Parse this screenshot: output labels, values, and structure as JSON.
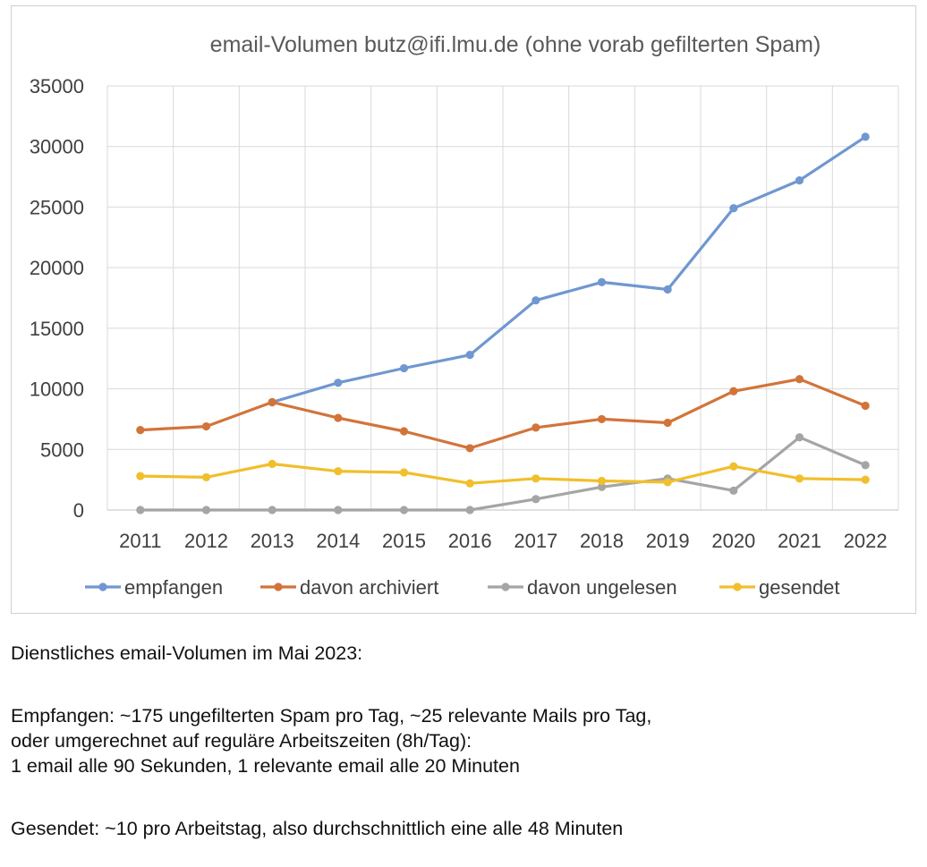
{
  "chart_data": {
    "type": "line",
    "title": "email-Volumen butz@ifi.lmu.de  (ohne  vorab gefilterten Spam)",
    "xlabel": "",
    "ylabel": "",
    "categories": [
      "2011",
      "2012",
      "2013",
      "2014",
      "2015",
      "2016",
      "2017",
      "2018",
      "2019",
      "2020",
      "2021",
      "2022"
    ],
    "ylim": [
      0,
      35000
    ],
    "yticks": [
      0,
      5000,
      10000,
      15000,
      20000,
      25000,
      30000,
      35000
    ],
    "ytick_labels": [
      "0",
      "5000",
      "10000",
      "15000",
      "20000",
      "25000",
      "30000",
      "35000"
    ],
    "grid": true,
    "legend_position": "bottom",
    "series": [
      {
        "name": "empfangen",
        "color": "#6f97d0",
        "values": [
          null,
          null,
          8900,
          10500,
          11700,
          12800,
          17300,
          18800,
          18200,
          24900,
          27200,
          30800
        ]
      },
      {
        "name": "davon archiviert",
        "color": "#d2743a",
        "values": [
          6600,
          6900,
          8900,
          7600,
          6500,
          5100,
          6800,
          7500,
          7200,
          9800,
          10800,
          8600
        ]
      },
      {
        "name": "davon ungelesen",
        "color": "#a5a5a5",
        "values": [
          0,
          0,
          0,
          0,
          0,
          0,
          900,
          1900,
          2600,
          1600,
          6000,
          3700
        ]
      },
      {
        "name": "gesendet",
        "color": "#f1bf2c",
        "values": [
          2800,
          2700,
          3800,
          3200,
          3100,
          2200,
          2600,
          2400,
          2300,
          3600,
          2600,
          2500
        ]
      }
    ]
  },
  "notes": {
    "heading": "Dienstliches email-Volumen im Mai 2023:",
    "received_line1": "Empfangen: ~175 ungefilterten Spam pro Tag, ~25 relevante Mails pro Tag,",
    "received_line2": "oder umgerechnet auf reguläre Arbeitszeiten (8h/Tag):",
    "received_line3": "1 email alle 90 Sekunden, 1 relevante email alle 20 Minuten",
    "sent_line": "Gesendet: ~10 pro Arbeitstag, also durchschnittlich eine alle 48 Minuten"
  }
}
